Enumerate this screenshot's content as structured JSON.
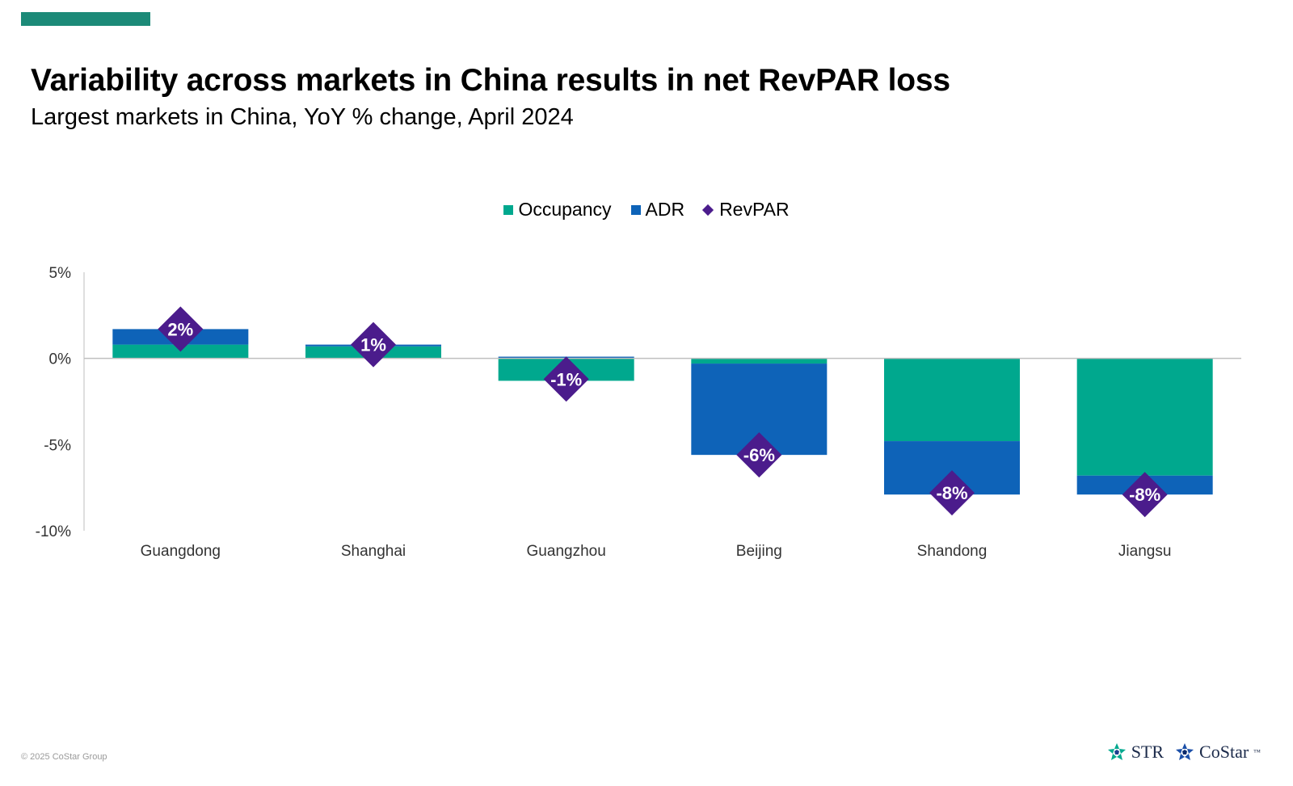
{
  "header": {
    "title": "Variability across markets in China results in net RevPAR loss",
    "subtitle": "Largest markets in China, YoY % change, April 2024"
  },
  "legend": {
    "items": [
      {
        "label": "Occupancy",
        "color": "#00a88e",
        "shape": "square"
      },
      {
        "label": "ADR",
        "color": "#0e63b8",
        "shape": "square"
      },
      {
        "label": "RevPAR",
        "color": "#4b1c8c",
        "shape": "diamond"
      }
    ]
  },
  "chart_data": {
    "type": "bar",
    "stacked": true,
    "categories": [
      "Guangdong",
      "Shanghai",
      "Guangzhou",
      "Beijing",
      "Shandong",
      "Jiangsu"
    ],
    "series": [
      {
        "name": "Occupancy",
        "color": "#00a88e",
        "values": [
          0.8,
          0.7,
          -1.3,
          -0.3,
          -4.8,
          -6.8
        ]
      },
      {
        "name": "ADR",
        "color": "#0e63b8",
        "values": [
          0.9,
          0.1,
          0.1,
          -5.3,
          -3.1,
          -1.1
        ]
      }
    ],
    "revpar": {
      "name": "RevPAR",
      "color": "#4b1c8c",
      "values": [
        1.7,
        0.8,
        -1.2,
        -5.6,
        -7.8,
        -7.9
      ],
      "labels": [
        "2%",
        "1%",
        "-1%",
        "-6%",
        "-8%",
        "-8%"
      ]
    },
    "yticks": [
      "5%",
      "0%",
      "-5%",
      "-10%"
    ],
    "ytick_values": [
      5,
      0,
      -5,
      -10
    ],
    "ylim": [
      -10,
      5
    ],
    "grid": false,
    "legend_position": "top-center"
  },
  "footer": {
    "copyright": "© 2025 CoStar Group",
    "logo_str": "STR",
    "logo_costar": "CoStar",
    "tm": "™"
  }
}
